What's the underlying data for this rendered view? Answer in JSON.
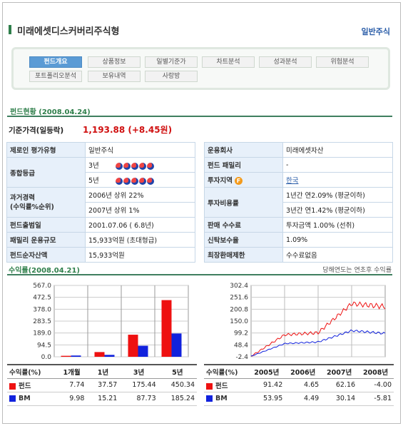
{
  "header": {
    "title": "미래에셋디스커버리주식형",
    "category": "일반주식"
  },
  "tabs": [
    "펀드개요",
    "상품정보",
    "일별기준가",
    "차트분석",
    "성과분석",
    "위험분석",
    "포트폴리오분석",
    "보유내역",
    "사랑방"
  ],
  "status": {
    "title": "펀드현황 (2008.04.24)",
    "price_label": "기준가격(일등락)",
    "price_value": "1,193.88 (+8.45원)"
  },
  "info_left": {
    "rating_type_label": "제로인 평가유형",
    "rating_type_value": "일반주식",
    "grade_label": "종합등급",
    "grade_3y": "3년",
    "grade_5y": "5년",
    "perf_label": "과거경력\n(수익률%순위)",
    "perf_2006": "2006년 상위 22%",
    "perf_2007": "2007년 상위 1%",
    "launch_label": "펀드출범일",
    "launch_value": "2001.07.06 ( 6.8년)",
    "family_size_label": "패밀리 운용규모",
    "family_size_value": "15,933억원 (초대형급)",
    "nav_label": "펀드순자산액",
    "nav_value": "15,933억원"
  },
  "info_right": {
    "company_label": "운용회사",
    "company_value": "미래에셋자산",
    "family_label": "펀드 패밀리",
    "family_value": "-",
    "region_label": "투자지역",
    "region_badge": "F",
    "region_value": "한국",
    "fee_label": "투자비용률",
    "fee_1y": "1년간 연2.09% (평균이하)",
    "fee_3y": "3년간 연1.42% (평균이하)",
    "sales_fee_label": "판매 수수료",
    "sales_fee_value": "투자금액 1.00% (선취)",
    "trust_fee_label": "신탁보수율",
    "trust_fee_value": "1.09%",
    "redemption_label": "최장환매제한",
    "redemption_value": "수수료없음"
  },
  "returns": {
    "title": "수익률(2008.04.21)",
    "note": "당해연도는 연초후 수익률",
    "row_fund": "펀드",
    "row_bm": "BM",
    "col_label": "수익률(%)"
  },
  "colors": {
    "fund": "#ee1111",
    "bm": "#1122dd"
  },
  "chart_data": [
    {
      "type": "bar",
      "categories": [
        "1개월",
        "1년",
        "3년",
        "5년"
      ],
      "series": [
        {
          "name": "펀드",
          "values": [
            7.74,
            37.57,
            175.44,
            450.34
          ]
        },
        {
          "name": "BM",
          "values": [
            9.98,
            15.21,
            87.73,
            185.24
          ]
        }
      ],
      "yticks": [
        "567.0",
        "472.5",
        "378.0",
        "283.5",
        "189.0",
        "94.5",
        "0.0"
      ],
      "ylim": [
        0,
        567
      ]
    },
    {
      "type": "line",
      "categories": [
        "2005년",
        "2006년",
        "2007년",
        "2008년"
      ],
      "annual": [
        {
          "name": "펀드",
          "values": [
            "91.42",
            "4.65",
            "62.16",
            "-4.00"
          ]
        },
        {
          "name": "BM",
          "values": [
            "53.95",
            "4.49",
            "30.14",
            "-5.81"
          ]
        }
      ],
      "yticks": [
        "302.4",
        "251.6",
        "200.8",
        "150.0",
        "99.2",
        "48.4",
        "-2.4"
      ],
      "ylim": [
        -2.4,
        302.4
      ]
    }
  ]
}
